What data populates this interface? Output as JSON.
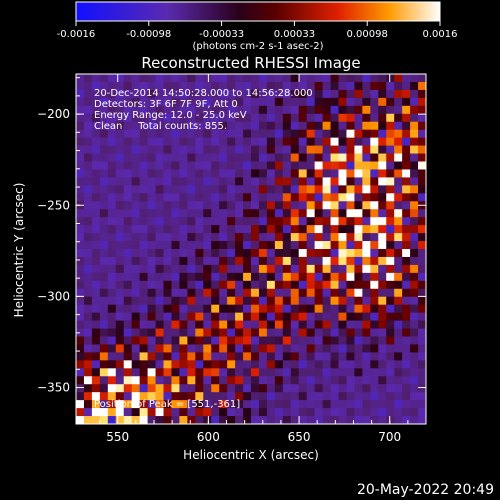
{
  "chart_data": {
    "type": "heatmap",
    "title": "Reconstructed RHESSI Image",
    "xlabel": "Heliocentric X (arcsec)",
    "ylabel": "Heliocentric Y (arcsec)",
    "xlim": [
      527,
      720
    ],
    "ylim": [
      -370,
      -178
    ],
    "x_ticks": [
      550,
      600,
      650,
      700
    ],
    "y_ticks": [
      -200,
      -250,
      -300,
      -350
    ],
    "colorbar": {
      "ticks": [
        "-0.0016",
        "-0.00098",
        "-0.00033",
        "0.00033",
        "0.00098",
        "0.0016"
      ],
      "unit_label": "(photons cm-2 s-1 asec-2)",
      "range": [
        -0.0016,
        0.0016
      ]
    },
    "annotations": [
      "20-Dec-2014 14:50:28.000 to 14:56:28.000",
      "Detectors: 3F 6F 7F 9F, Att 0",
      "Energy Range: 12.0 - 25.0 keV",
      "Clean     Total counts: 855."
    ],
    "peak_label": "Position of Peak = [551,-361]",
    "peak": [
      551,
      -361
    ],
    "grid": false
  },
  "timestamp": "20-May-2022 20:49"
}
